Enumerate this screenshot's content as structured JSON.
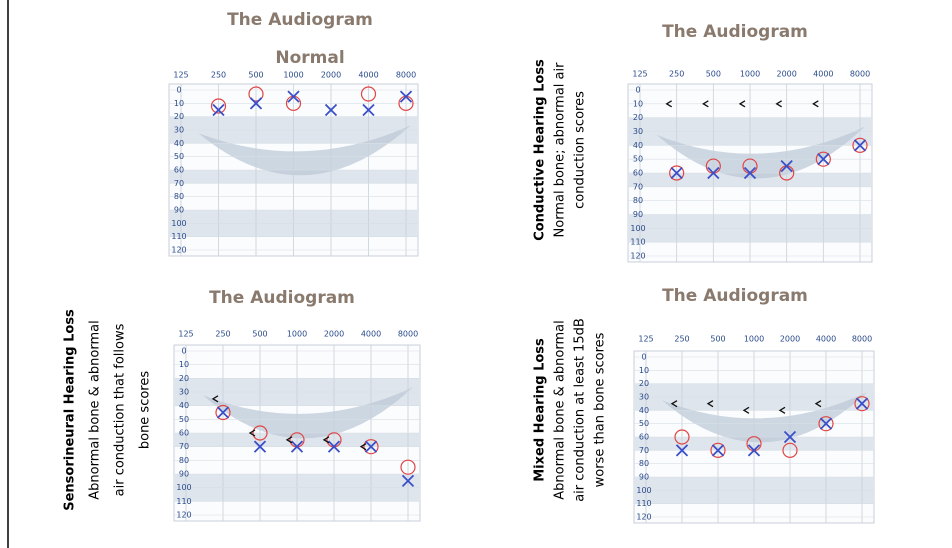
{
  "panels": [
    {
      "title": "The Audiogram",
      "subtitle": "Normal",
      "freq_labels": [
        125,
        250,
        500,
        1000,
        2000,
        4000,
        8000
      ],
      "db_labels": [
        0,
        10,
        20,
        30,
        40,
        50,
        60,
        70,
        80,
        90,
        100,
        110,
        120
      ],
      "air_o": [
        null,
        12,
        3,
        10,
        null,
        3,
        10
      ],
      "air_x": [
        null,
        15,
        10,
        5,
        15,
        15,
        5
      ],
      "bone": [
        null,
        null,
        null,
        null,
        null,
        null,
        null
      ]
    },
    {
      "title": "The Audiogram",
      "caption": {
        "heading": "Conductive Hearing Loss",
        "lines": [
          "Normal bone; abnormal air",
          "conduction scores"
        ]
      },
      "freq_labels": [
        125,
        250,
        500,
        1000,
        2000,
        4000,
        8000
      ],
      "db_labels": [
        0,
        10,
        20,
        30,
        40,
        50,
        60,
        70,
        80,
        90,
        100,
        110,
        120
      ],
      "air_o": [
        null,
        60,
        55,
        55,
        60,
        50,
        40
      ],
      "air_x": [
        null,
        60,
        60,
        60,
        55,
        50,
        40
      ],
      "bone": [
        null,
        10,
        10,
        10,
        10,
        10,
        null
      ]
    },
    {
      "title": "The Audiogram",
      "caption": {
        "heading": "Sensorineural Hearing Loss",
        "lines": [
          "Abnormal bone & abnormal",
          "air conduction that follows",
          "bone scores"
        ]
      },
      "freq_labels": [
        125,
        250,
        500,
        1000,
        2000,
        4000,
        8000
      ],
      "db_labels": [
        0,
        10,
        20,
        30,
        40,
        50,
        60,
        70,
        80,
        90,
        100,
        110,
        120
      ],
      "air_o": [
        null,
        45,
        60,
        65,
        65,
        70,
        85
      ],
      "air_x": [
        null,
        45,
        70,
        70,
        70,
        70,
        95
      ],
      "bone": [
        null,
        35,
        60,
        65,
        65,
        70,
        null
      ]
    },
    {
      "title": "The Audiogram",
      "caption": {
        "heading": "Mixed Hearing Loss",
        "lines": [
          "Abnormal bone & abnormal",
          "air conduction at least 15dB",
          "worse than bone scores"
        ]
      },
      "freq_labels": [
        125,
        250,
        500,
        1000,
        2000,
        4000,
        8000
      ],
      "db_labels": [
        0,
        10,
        20,
        30,
        40,
        50,
        60,
        70,
        80,
        90,
        100,
        110,
        120
      ],
      "air_o": [
        null,
        60,
        70,
        65,
        70,
        50,
        35
      ],
      "air_x": [
        null,
        70,
        70,
        70,
        60,
        50,
        35
      ],
      "bone": [
        null,
        35,
        35,
        40,
        40,
        35,
        null
      ]
    }
  ]
}
